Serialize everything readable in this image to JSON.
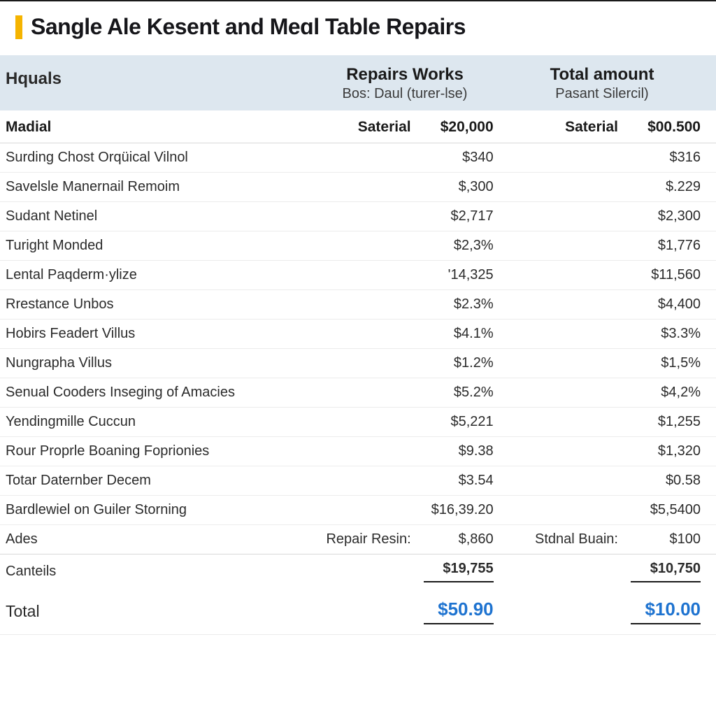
{
  "colors": {
    "accent": "#f5b400",
    "header_band": "#dde7ef",
    "rule": "#d8d8d8",
    "row_rule": "#ececec",
    "text": "#1a1a1a",
    "total_value": "#1e73d0",
    "background": "#ffffff"
  },
  "typography": {
    "title_fontsize": 32,
    "header_fontsize": 24,
    "subheader_fontsize": 20,
    "row_fontsize": 20,
    "total_fontsize": 23
  },
  "title": "Sangle Ale Kesent and Meɑl Table Repairs",
  "header": {
    "left": "Hquals",
    "col1": {
      "line1": "Repairs Works",
      "line2": "Bos: Daul (turer-lse)"
    },
    "col2": {
      "line1": "Total amount",
      "line2": "Pasant Silercil)"
    }
  },
  "subhead": {
    "label": "Madial",
    "col1_left": "Saterial",
    "col1_val": "$20,000",
    "col2_left": "Saterial",
    "col2_val": "$00.500"
  },
  "rows": [
    {
      "label": "Surding Chost Orqüical Vilnol",
      "c1": "$340",
      "c2": "$316"
    },
    {
      "label": "Savelsle Manernail Remoim",
      "c1": "$,300",
      "c2": "$.229"
    },
    {
      "label": "Sudant Netinel",
      "c1": "$2,717",
      "c2": "$2,300"
    },
    {
      "label": "Turight Monded",
      "c1": "$2,3%",
      "c2": "$1,776"
    },
    {
      "label": "Lental Paqderm·ylize",
      "c1": "'14,325",
      "c2": "$11,560"
    },
    {
      "label": "Rrestance Unbos",
      "c1": "$2.3%",
      "c2": "$4,400"
    },
    {
      "label": "Hobirs Feadert Villus",
      "c1": "$4.1%",
      "c2": "$3.3%"
    },
    {
      "label": "Nungrapha Villus",
      "c1": "$1.2%",
      "c2": "$1,5%"
    },
    {
      "label": "Senual Cooders Inseging of Amacies",
      "c1": "$5.2%",
      "c2": "$4,2%"
    },
    {
      "label": "Yendingmille Cuccun",
      "c1": "$5,221",
      "c2": "$1,255"
    },
    {
      "label": "Rour Proprle Boaning Foprionies",
      "c1": "$9.38",
      "c2": "$1,320"
    },
    {
      "label": "Totar Daternber Decem",
      "c1": "$3.54",
      "c2": "$0.58"
    },
    {
      "label": "Bardlewiel on Guiler Storning",
      "c1": "$16,39.20",
      "c2": "$5,5400"
    }
  ],
  "ades": {
    "label": "Ades",
    "col1_left": "Repair Resin:",
    "col1_val": "$,860",
    "col2_left": "Stdnal Buain:",
    "col2_val": "$100"
  },
  "canteils": {
    "label": "Canteils",
    "c1": "$19,755",
    "c2": "$10,750"
  },
  "total": {
    "label": "Total",
    "c1": "$50.90",
    "c2": "$10.00"
  }
}
